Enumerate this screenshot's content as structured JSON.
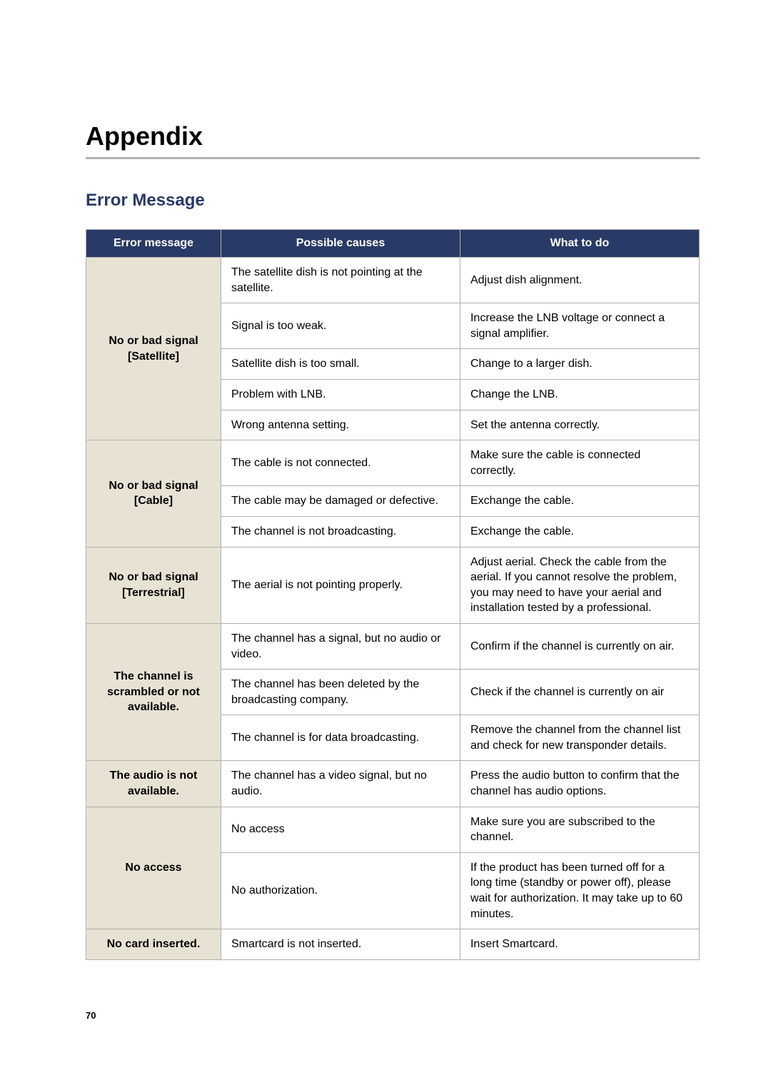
{
  "page": {
    "title": "Appendix",
    "subtitle": "Error Message",
    "page_number": "70"
  },
  "colors": {
    "header_bg": "#2a3a66",
    "header_text": "#ffffff",
    "rowhead_bg": "#e8e2d4",
    "border": "#b0b0b0",
    "rule": "#b0b0b0",
    "text": "#000000",
    "subtitle": "#2a3a66"
  },
  "table": {
    "headers": [
      "Error message",
      "Possible causes",
      "What to do"
    ],
    "groups": [
      {
        "label": "No or bad signal [Satellite]",
        "rows": [
          {
            "cause": "The satellite dish is not pointing at the satellite.",
            "action": "Adjust dish alignment."
          },
          {
            "cause": "Signal is too weak.",
            "action": "Increase the LNB voltage or connect a signal amplifier."
          },
          {
            "cause": "Satellite dish is too small.",
            "action": "Change to a larger dish."
          },
          {
            "cause": "Problem with LNB.",
            "action": "Change the LNB."
          },
          {
            "cause": "Wrong antenna setting.",
            "action": "Set the antenna correctly."
          }
        ]
      },
      {
        "label": "No or bad signal [Cable]",
        "rows": [
          {
            "cause": "The cable is not connected.",
            "action": "Make sure the cable is connected correctly."
          },
          {
            "cause": "The cable may be damaged or defective.",
            "action": "Exchange the cable."
          },
          {
            "cause": "The channel is not broadcasting.",
            "action": "Exchange the cable."
          }
        ]
      },
      {
        "label": "No or bad signal [Terrestrial]",
        "rows": [
          {
            "cause": "The aerial is not pointing properly.",
            "action": "Adjust aerial. Check the cable from the aerial. If you cannot resolve the problem, you may need to have your aerial and installation tested by a professional."
          }
        ]
      },
      {
        "label": "The channel is scrambled or not available.",
        "rows": [
          {
            "cause": "The channel has a signal, but no audio or video.",
            "action": "Confirm if the channel is currently on air."
          },
          {
            "cause": "The channel has been deleted by the broadcasting company.",
            "action": "Check if the channel is currently on air"
          },
          {
            "cause": "The channel is for data broadcasting.",
            "action": "Remove the channel from the channel list and check for new transponder details."
          }
        ]
      },
      {
        "label": "The audio is not available.",
        "rows": [
          {
            "cause": "The channel has a video signal, but no audio.",
            "action": "Press the audio button to confirm that the channel has audio options."
          }
        ]
      },
      {
        "label": "No access",
        "rows": [
          {
            "cause": "No access",
            "action": "Make sure you are subscribed to the channel."
          },
          {
            "cause": "No authorization.",
            "action": "If the product has been turned off for a long time (standby or power off), please wait for authorization. It may take up to 60 minutes."
          }
        ]
      },
      {
        "label": "No card inserted.",
        "rows": [
          {
            "cause": "Smartcard is not inserted.",
            "action": "Insert Smartcard."
          }
        ]
      }
    ]
  }
}
